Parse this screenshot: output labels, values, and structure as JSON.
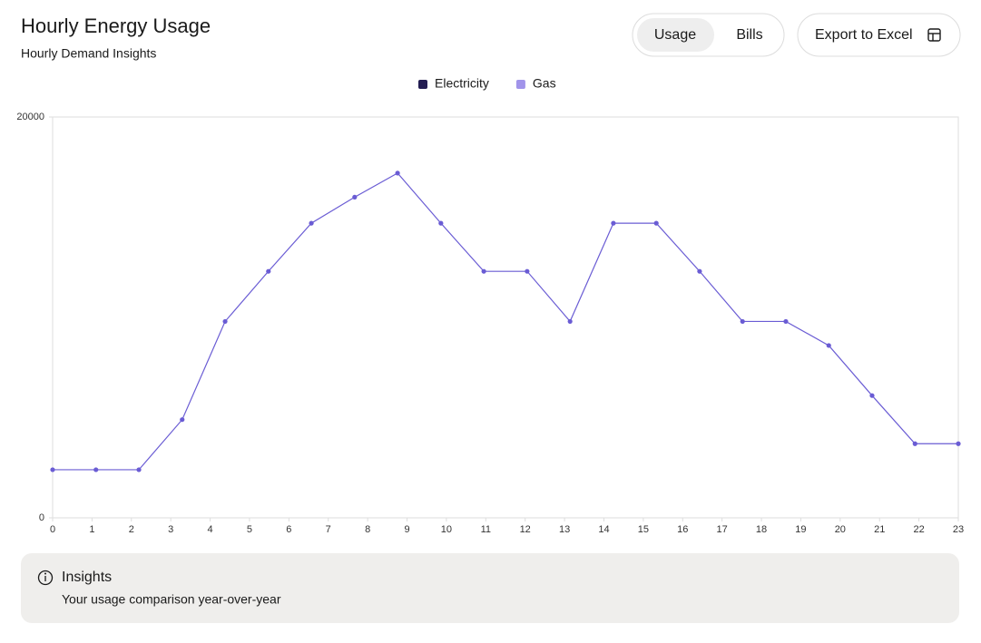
{
  "header": {
    "title": "Hourly Energy Usage",
    "subtitle": "Hourly Demand Insights"
  },
  "toggle": {
    "options": [
      "Usage",
      "Bills"
    ],
    "active": "Usage"
  },
  "export_button": "Export to Excel",
  "chart_data": {
    "type": "line",
    "x": [
      0,
      1.1,
      2.19,
      3.29,
      4.38,
      5.48,
      6.57,
      7.67,
      8.76,
      9.86,
      10.95,
      12.05,
      13.14,
      14.24,
      15.33,
      16.43,
      17.52,
      18.62,
      19.71,
      20.81,
      21.9,
      23
    ],
    "series": [
      {
        "name": "Electricity",
        "color": "#231d52"
      },
      {
        "name": "Gas",
        "color": "#a194ea",
        "line_color": "#6a5cd4",
        "values": [
          2400,
          2400,
          2400,
          4900,
          9800,
          12300,
          14700,
          16000,
          17200,
          14700,
          12300,
          12300,
          9800,
          14700,
          14700,
          12300,
          9800,
          9800,
          8600,
          6100,
          3700,
          3700
        ]
      }
    ],
    "xlim": [
      0,
      23
    ],
    "xticks": [
      0,
      1,
      2,
      3,
      4,
      5,
      6,
      7,
      8,
      9,
      10,
      11,
      12,
      13,
      14,
      15,
      16,
      17,
      18,
      19,
      20,
      21,
      22,
      23
    ],
    "ylim": [
      0,
      20000
    ],
    "yticks": [
      0,
      20000
    ],
    "legend": "top"
  },
  "insights": {
    "title": "Insights",
    "text": "Your usage comparison year-over-year"
  }
}
